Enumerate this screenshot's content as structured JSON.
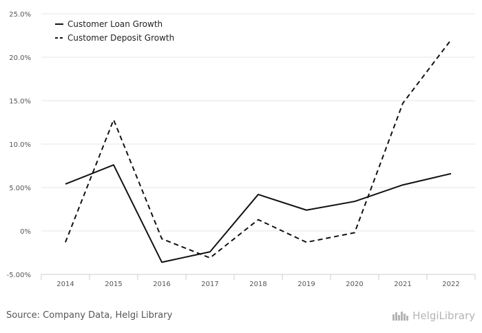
{
  "chart_data": {
    "type": "line",
    "categories": [
      "2014",
      "2015",
      "2016",
      "2017",
      "2018",
      "2019",
      "2020",
      "2021",
      "2022"
    ],
    "series": [
      {
        "name": "Customer Loan Growth",
        "style": "solid",
        "color": "#111111",
        "values": [
          5.4,
          7.6,
          -3.6,
          -2.4,
          4.2,
          2.4,
          3.4,
          5.3,
          6.6
        ]
      },
      {
        "name": "Customer Deposit Growth",
        "style": "dashed",
        "color": "#111111",
        "values": [
          -1.3,
          12.8,
          -0.9,
          -3.1,
          1.3,
          -1.3,
          -0.2,
          14.7,
          22.0
        ]
      }
    ],
    "yticks": [
      -5,
      0,
      5,
      10,
      15,
      20,
      25
    ],
    "ytick_labels": [
      "-5.00%",
      "0%",
      "5.00%",
      "10.0%",
      "15.0%",
      "20.0%",
      "25.0%"
    ],
    "ylim": [
      -5,
      25
    ],
    "title": "",
    "xlabel": "",
    "ylabel": "",
    "legend": "top-left",
    "grid": true
  },
  "footer": {
    "source": "Source: Company Data, Helgi Library",
    "brand": "HelgiLibrary",
    "brand_icon": "helgi-library-logo-icon"
  }
}
